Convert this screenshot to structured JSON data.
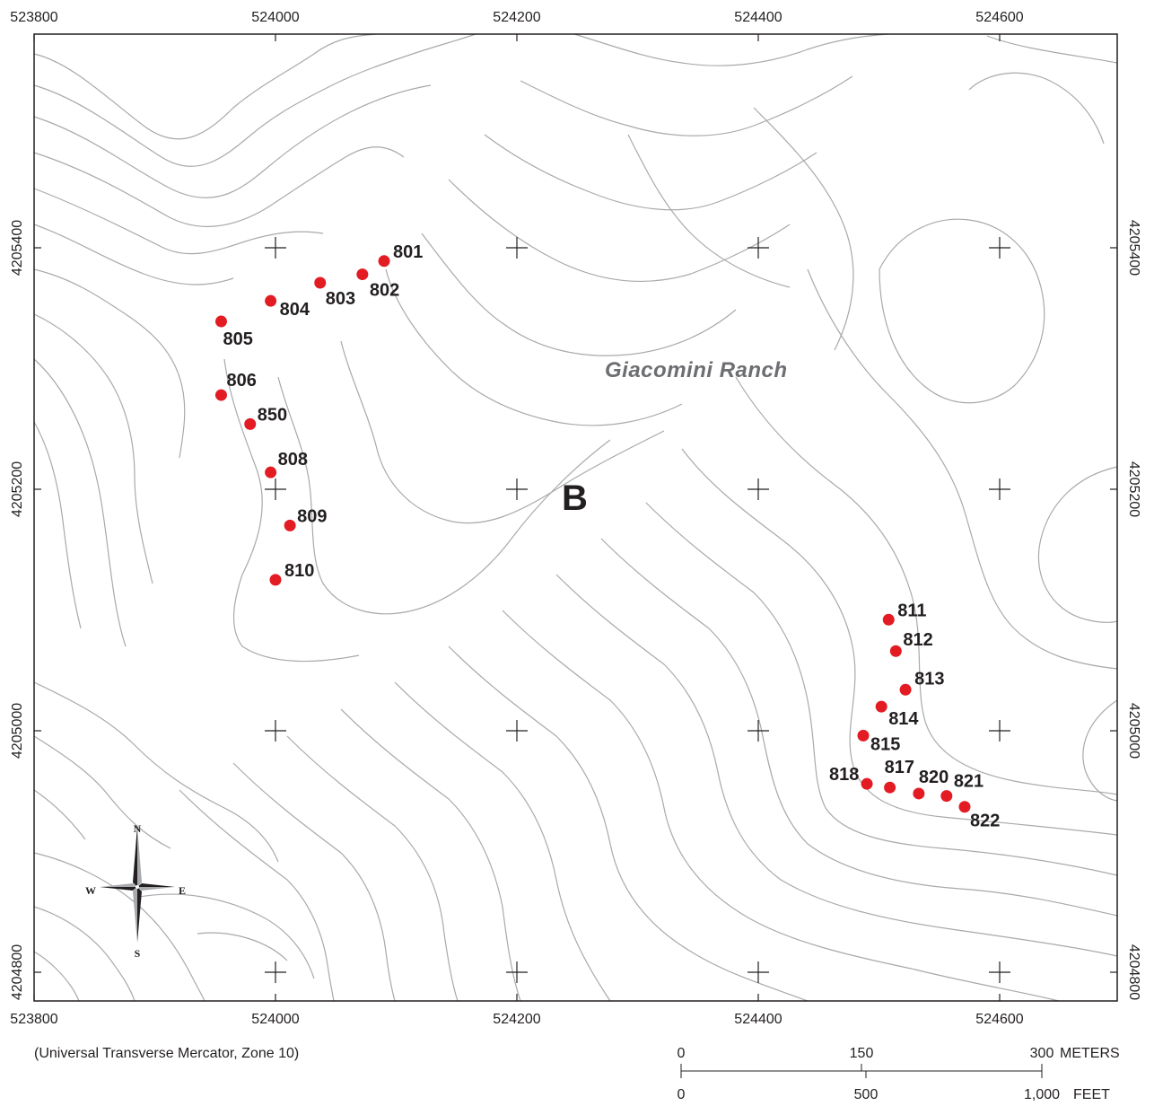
{
  "map": {
    "projection_note": "(Universal Transverse Mercator, Zone 10)",
    "place_label": "Giacomini Ranch",
    "area_label": "B",
    "colors": {
      "sample_point": "#e31b23",
      "contour": "#a7a9ac",
      "ink": "#231f20",
      "place_label": "#6d6e71"
    },
    "x_ticks": [
      "523800",
      "524000",
      "524200",
      "524400",
      "524600"
    ],
    "y_ticks": [
      "4205400",
      "4205200",
      "4205000",
      "4204800"
    ],
    "sample_points": [
      {
        "id": "801",
        "easting": 524090,
        "northing": 4205389
      },
      {
        "id": "802",
        "easting": 524072,
        "northing": 4205378
      },
      {
        "id": "803",
        "easting": 524037,
        "northing": 4205371
      },
      {
        "id": "804",
        "easting": 523996,
        "northing": 4205356
      },
      {
        "id": "805",
        "easting": 523955,
        "northing": 4205339
      },
      {
        "id": "806",
        "easting": 523955,
        "northing": 4205278
      },
      {
        "id": "850",
        "easting": 523979,
        "northing": 4205254
      },
      {
        "id": "808",
        "easting": 523996,
        "northing": 4205214
      },
      {
        "id": "809",
        "easting": 524012,
        "northing": 4205170
      },
      {
        "id": "810",
        "easting": 524000,
        "northing": 4205125
      },
      {
        "id": "811",
        "easting": 524508,
        "northing": 4205092
      },
      {
        "id": "812",
        "easting": 524514,
        "northing": 4205066
      },
      {
        "id": "813",
        "easting": 524522,
        "northing": 4205034
      },
      {
        "id": "814",
        "easting": 524502,
        "northing": 4205020
      },
      {
        "id": "815",
        "easting": 524487,
        "northing": 4204996
      },
      {
        "id": "818",
        "easting": 524490,
        "northing": 4204956
      },
      {
        "id": "817",
        "easting": 524509,
        "northing": 4204953
      },
      {
        "id": "820",
        "easting": 524533,
        "northing": 4204948
      },
      {
        "id": "821",
        "easting": 524556,
        "northing": 4204946
      },
      {
        "id": "822",
        "easting": 524571,
        "northing": 4204937
      }
    ],
    "compass": {
      "north": "N",
      "south": "S",
      "east": "E",
      "west": "W"
    },
    "scale_bar": {
      "meters_labels": [
        "0",
        "150",
        "300"
      ],
      "meters_unit": "METERS",
      "feet_labels": [
        "0",
        "500",
        "1,000"
      ],
      "feet_unit": "FEET"
    }
  }
}
